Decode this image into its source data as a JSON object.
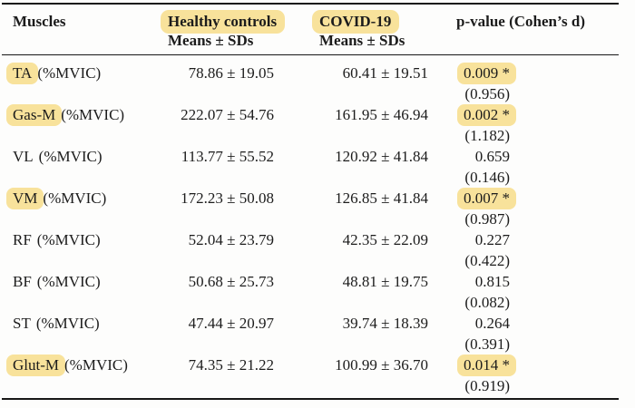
{
  "colors": {
    "highlight": "#f8e29b",
    "text": "#1c1c1c",
    "rule": "#171717"
  },
  "header": {
    "muscles_label": "Muscles",
    "col2_label": "Healthy controls",
    "col2_sublabel": "Means ± SDs",
    "col2_highlighted": true,
    "col3_label": "COVID-19",
    "col3_sublabel": "Means ± SDs",
    "col3_highlighted": true,
    "col4_label": "p-value (Cohen’s d)"
  },
  "rows": [
    {
      "muscle": "TA",
      "unit": "(%MVIC)",
      "muscle_highlighted": true,
      "healthy": "78.86 ± 19.05",
      "covid": "60.41 ± 19.51",
      "p_value": "0.009 *",
      "p_highlighted": true,
      "cohens_d": "(0.956)"
    },
    {
      "muscle": "Gas-M",
      "unit": "(%MVIC)",
      "muscle_highlighted": true,
      "healthy": "222.07 ± 54.76",
      "covid": "161.95 ± 46.94",
      "p_value": "0.002 *",
      "p_highlighted": true,
      "cohens_d": "(1.182)"
    },
    {
      "muscle": "VL",
      "unit": "(%MVIC)",
      "muscle_highlighted": false,
      "healthy": "113.77 ± 55.52",
      "covid": "120.92 ± 41.84",
      "p_value": "0.659",
      "p_highlighted": false,
      "cohens_d": "(0.146)"
    },
    {
      "muscle": "VM",
      "unit": "(%MVIC)",
      "muscle_highlighted": true,
      "healthy": "172.23 ± 50.08",
      "covid": "126.85 ± 41.84",
      "p_value": "0.007 *",
      "p_highlighted": true,
      "cohens_d": "(0.987)"
    },
    {
      "muscle": "RF",
      "unit": "(%MVIC)",
      "muscle_highlighted": false,
      "healthy": "52.04 ± 23.79",
      "covid": "42.35 ± 22.09",
      "p_value": "0.227",
      "p_highlighted": false,
      "cohens_d": "(0.422)"
    },
    {
      "muscle": "BF",
      "unit": "(%MVIC)",
      "muscle_highlighted": false,
      "healthy": "50.68 ± 25.73",
      "covid": "48.81 ± 19.75",
      "p_value": "0.815",
      "p_highlighted": false,
      "cohens_d": "(0.082)"
    },
    {
      "muscle": "ST",
      "unit": "(%MVIC)",
      "muscle_highlighted": false,
      "healthy": "47.44 ± 20.97",
      "covid": "39.74 ± 18.39",
      "p_value": "0.264",
      "p_highlighted": false,
      "cohens_d": "(0.391)"
    },
    {
      "muscle": "Glut-M",
      "unit": "(%MVIC)",
      "muscle_highlighted": true,
      "healthy": "74.35 ± 21.22",
      "covid": "100.99 ± 36.70",
      "p_value": "0.014 *",
      "p_highlighted": true,
      "cohens_d": "(0.919)"
    }
  ]
}
